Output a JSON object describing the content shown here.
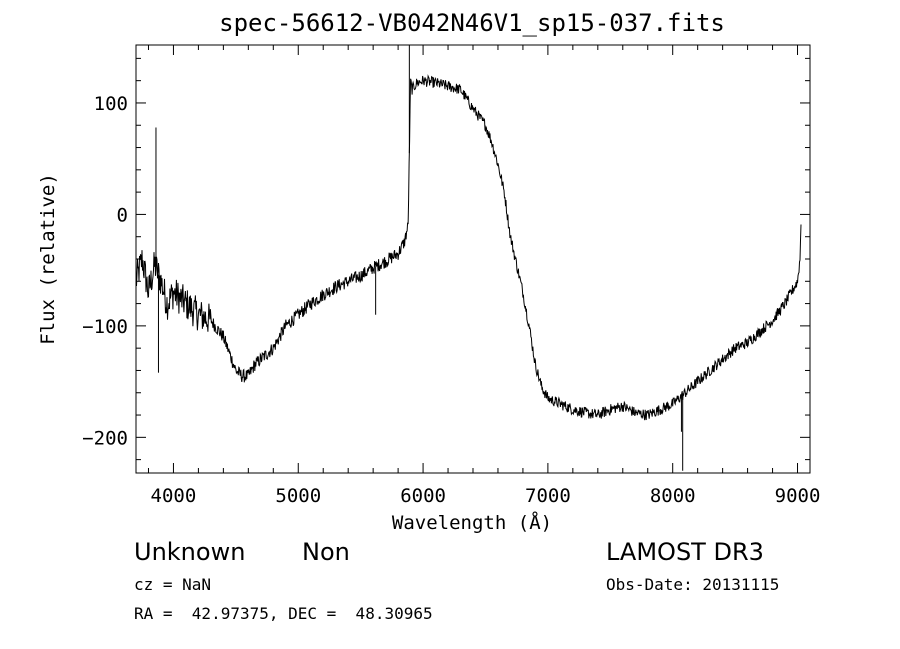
{
  "chart_data": {
    "type": "line",
    "title": "spec-56612-VB042N46V1_sp15-037.fits",
    "xlabel": "Wavelength (Å)",
    "ylabel": "Flux (relative)",
    "xlim": [
      3700,
      9100
    ],
    "ylim": [
      -232,
      152
    ],
    "xticks": [
      4000,
      5000,
      6000,
      7000,
      8000,
      9000
    ],
    "yticks": [
      100,
      0,
      -100,
      -200
    ],
    "xtick_labels": [
      "4000",
      "5000",
      "6000",
      "7000",
      "8000",
      "9000"
    ],
    "ytick_labels": [
      "100",
      "0",
      "−100",
      "−200"
    ],
    "x_range_data": [
      3700,
      9030
    ],
    "series": [
      {
        "name": "flux",
        "x": [
          3700,
          3750,
          3800,
          3850,
          3900,
          3950,
          4000,
          4100,
          4200,
          4300,
          4400,
          4450,
          4500,
          4550,
          4600,
          4650,
          4700,
          4800,
          4900,
          5000,
          5100,
          5200,
          5300,
          5400,
          5500,
          5600,
          5700,
          5800,
          5850,
          5880,
          5900,
          5910,
          5950,
          6000,
          6100,
          6200,
          6300,
          6400,
          6500,
          6550,
          6600,
          6650,
          6700,
          6750,
          6800,
          6850,
          6900,
          6950,
          7000,
          7100,
          7200,
          7300,
          7400,
          7500,
          7600,
          7700,
          7800,
          7900,
          8000,
          8050,
          8100,
          8200,
          8300,
          8400,
          8500,
          8600,
          8700,
          8800,
          8900,
          9000,
          9020,
          9030
        ],
        "values": [
          -60,
          -40,
          -70,
          -45,
          -60,
          -80,
          -70,
          -80,
          -90,
          -95,
          -110,
          -125,
          -140,
          -145,
          -145,
          -135,
          -130,
          -120,
          -100,
          -90,
          -80,
          -72,
          -65,
          -60,
          -55,
          -48,
          -42,
          -35,
          -25,
          -10,
          120,
          112,
          118,
          120,
          118,
          115,
          112,
          95,
          80,
          65,
          45,
          20,
          -20,
          -45,
          -70,
          -100,
          -135,
          -155,
          -165,
          -170,
          -175,
          -178,
          -180,
          -175,
          -172,
          -178,
          -180,
          -175,
          -170,
          -165,
          -160,
          -150,
          -140,
          -130,
          -120,
          -115,
          -105,
          -95,
          -80,
          -60,
          -40,
          0
        ]
      }
    ],
    "spikes": [
      {
        "x": 3860,
        "value": 78
      },
      {
        "x": 3880,
        "value": -142
      },
      {
        "x": 5620,
        "value": -90
      },
      {
        "x": 5890,
        "value": 152
      },
      {
        "x": 8070,
        "value": -195
      },
      {
        "x": 8080,
        "value": -230
      }
    ]
  },
  "annotations": {
    "object_type": "Unknown",
    "object_class": "Non",
    "survey": "LAMOST DR3",
    "redshift": "cz = NaN",
    "obs_date": "Obs-Date: 20131115",
    "coordinates": "RA =  42.97375, DEC =  48.30965"
  }
}
